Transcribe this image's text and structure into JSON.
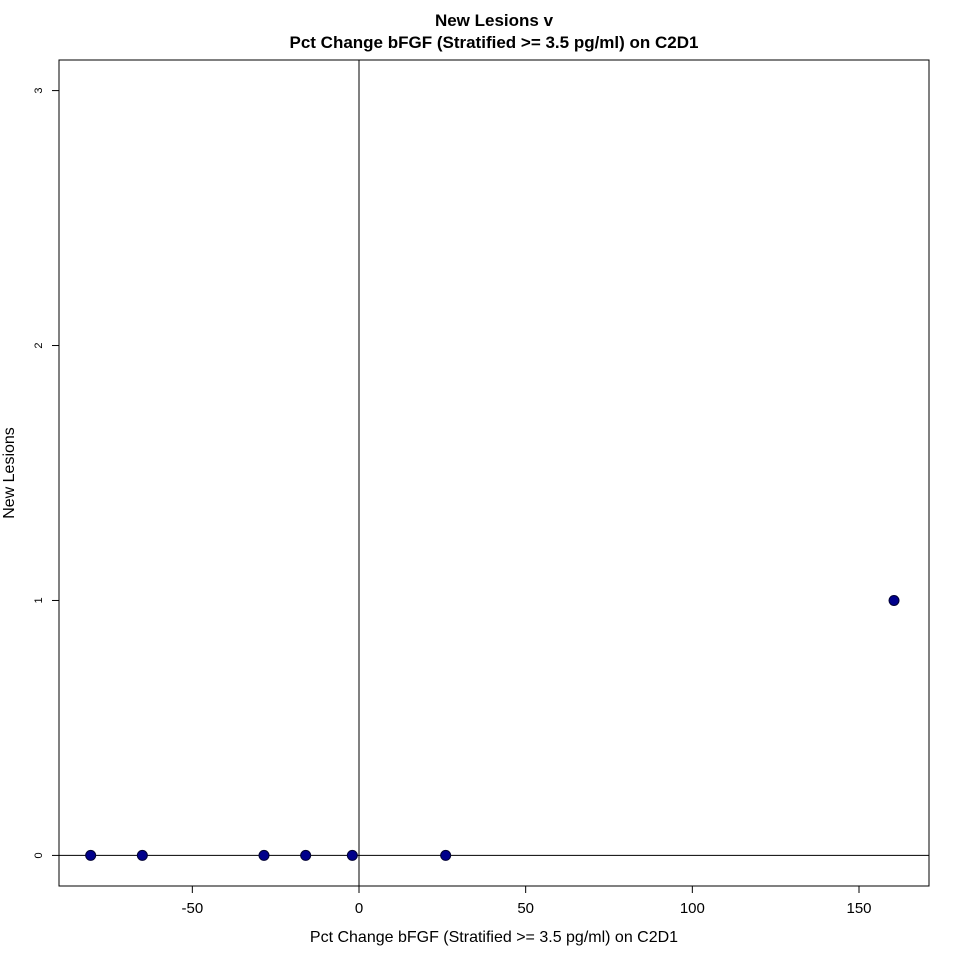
{
  "chart_data": {
    "type": "scatter",
    "title_line1": "New Lesions v",
    "title_line2": "Pct Change bFGF (Stratified >= 3.5 pg/ml) on C2D1",
    "xlabel": "Pct Change bFGF (Stratified >= 3.5 pg/ml) on C2D1",
    "ylabel": "New Lesions",
    "xlim": [
      -90,
      171
    ],
    "ylim": [
      -0.12,
      3.12
    ],
    "x_ticks": [
      -50,
      0,
      50,
      100,
      150
    ],
    "x_tick_labels": [
      "-50",
      "0",
      "50",
      "100",
      "150"
    ],
    "y_ticks": [
      0,
      1,
      2,
      3
    ],
    "y_tick_labels": [
      "0",
      "1",
      "2",
      "3"
    ],
    "reference_lines": {
      "vertical_x": 0,
      "horizontal_y": 0
    },
    "points": [
      {
        "x": -80.5,
        "y": 0
      },
      {
        "x": -65,
        "y": 0
      },
      {
        "x": -28.5,
        "y": 0
      },
      {
        "x": -16,
        "y": 0
      },
      {
        "x": -2,
        "y": 0
      },
      {
        "x": 26,
        "y": 0
      },
      {
        "x": 160.5,
        "y": 1
      }
    ],
    "point_color": "#00008b",
    "grid": false,
    "legend": "none"
  }
}
